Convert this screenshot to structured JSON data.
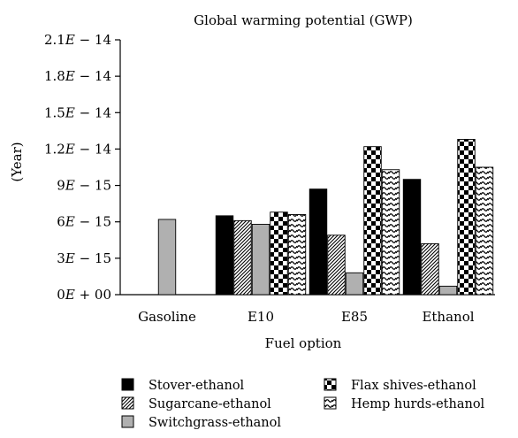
{
  "chart_data": {
    "type": "bar",
    "title": "Global warming potential (GWP)",
    "xlabel": "Fuel option",
    "ylabel": "(Year)",
    "categories": [
      "Gasoline",
      "E10",
      "E85",
      "Ethanol"
    ],
    "ylim": [
      0,
      2.1e-14
    ],
    "yticks": [
      {
        "value": 0,
        "base": "0",
        "exp": "+ 00"
      },
      {
        "value": 3e-15,
        "base": "3",
        "exp": "− 15"
      },
      {
        "value": 6e-15,
        "base": "6",
        "exp": "− 15"
      },
      {
        "value": 9e-15,
        "base": "9",
        "exp": "− 15"
      },
      {
        "value": 1.2e-14,
        "base": "1.2",
        "exp": "− 14"
      },
      {
        "value": 1.5e-14,
        "base": "1.5",
        "exp": "− 14"
      },
      {
        "value": 1.8e-14,
        "base": "1.8",
        "exp": "− 14"
      },
      {
        "value": 2.1e-14,
        "base": "2.1",
        "exp": "− 14"
      }
    ],
    "series": [
      {
        "name": "Stover-ethanol",
        "pattern": "solid-black",
        "values": [
          0,
          6.5e-15,
          8.7e-15,
          9.5e-15
        ]
      },
      {
        "name": "Sugarcane-ethanol",
        "pattern": "diagonal-hatch",
        "values": [
          0,
          6.1e-15,
          4.9e-15,
          4.2e-15
        ]
      },
      {
        "name": "Switchgrass-ethanol",
        "pattern": "solid-gray",
        "values": [
          6.2e-15,
          5.8e-15,
          1.8e-15,
          7e-16
        ]
      },
      {
        "name": "Flax shives-ethanol",
        "pattern": "checkerboard",
        "values": [
          0,
          6.8e-15,
          1.22e-14,
          1.28e-14
        ]
      },
      {
        "name": "Hemp hurds-ethanol",
        "pattern": "wave",
        "values": [
          0,
          6.6e-15,
          1.03e-14,
          1.05e-14
        ]
      }
    ],
    "legend_position": "bottom",
    "grid": false
  }
}
